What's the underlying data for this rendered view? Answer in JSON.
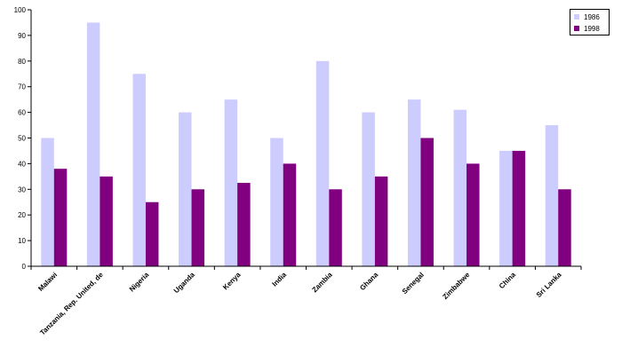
{
  "chart_data": {
    "type": "bar",
    "title": "",
    "xlabel": "",
    "ylabel": "",
    "ylim": [
      0,
      100
    ],
    "yticks": [
      0,
      10,
      20,
      30,
      40,
      50,
      60,
      70,
      80,
      90,
      100
    ],
    "grid": false,
    "legend_position": "top-right",
    "categories": [
      "Malawi",
      "Tanzania, Rep. United, de",
      "Nigeria",
      "Uganda",
      "Kenya",
      "India",
      "Zambia",
      "Ghana",
      "Senegal",
      "Zimbabwe",
      "China",
      "Sri Lanka"
    ],
    "series": [
      {
        "name": "1986",
        "color": "#ccccff",
        "values": [
          50,
          95,
          75,
          60,
          65,
          50,
          80,
          60,
          65,
          61,
          45,
          55
        ]
      },
      {
        "name": "1998",
        "color": "#800080",
        "values": [
          38,
          35,
          25,
          30,
          32.5,
          40,
          30,
          35,
          50,
          40,
          45,
          30
        ]
      }
    ]
  }
}
